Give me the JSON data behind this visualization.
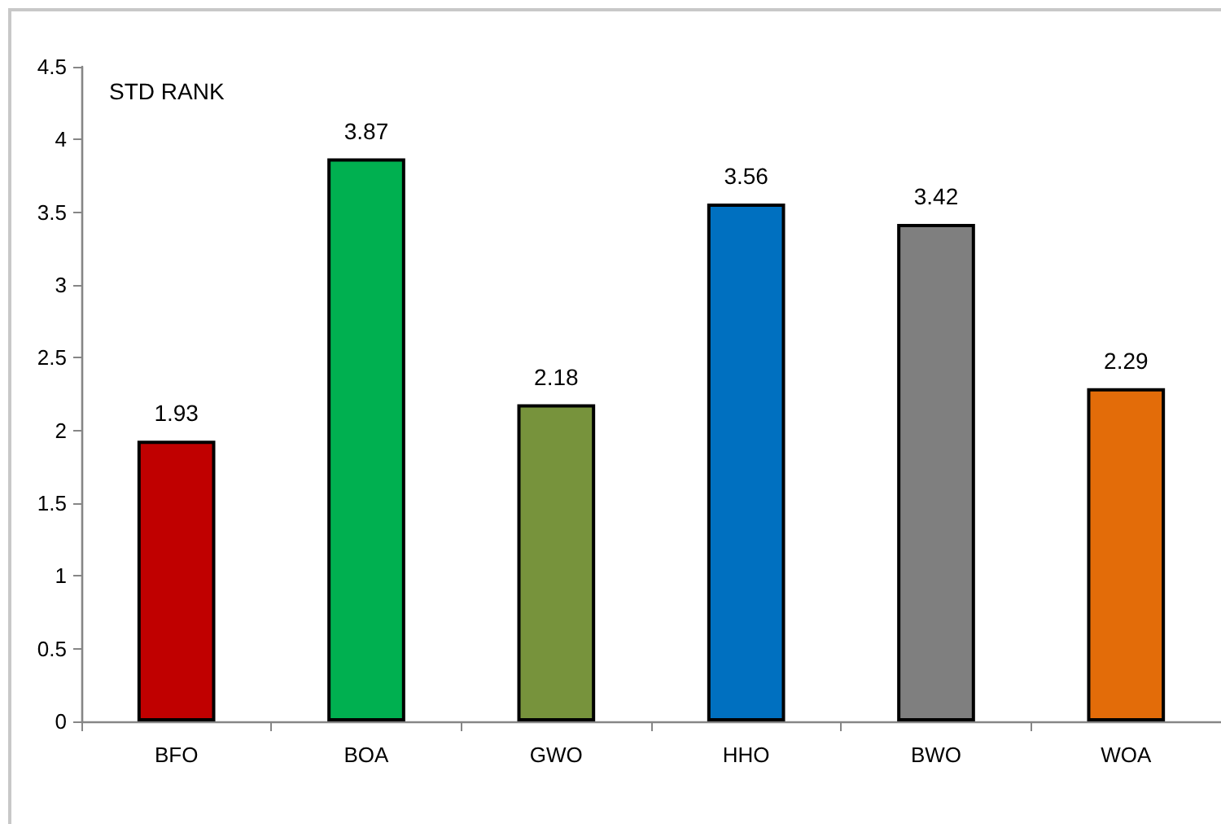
{
  "chart_data": {
    "type": "bar",
    "ylabel": "STD RANK",
    "categories": [
      "BFO",
      "BOA",
      "GWO",
      "HHO",
      "BWO",
      "WOA"
    ],
    "values": [
      1.93,
      3.87,
      2.18,
      3.56,
      3.42,
      2.29
    ],
    "colors": [
      "#c00000",
      "#00b050",
      "#77933c",
      "#0070c0",
      "#7f7f7f",
      "#e36c09"
    ],
    "ylim": [
      0,
      4.5
    ],
    "yticks": [
      0,
      0.5,
      1,
      1.5,
      2,
      2.5,
      3,
      3.5,
      4,
      4.5
    ],
    "grid": false,
    "data_labels": true
  }
}
